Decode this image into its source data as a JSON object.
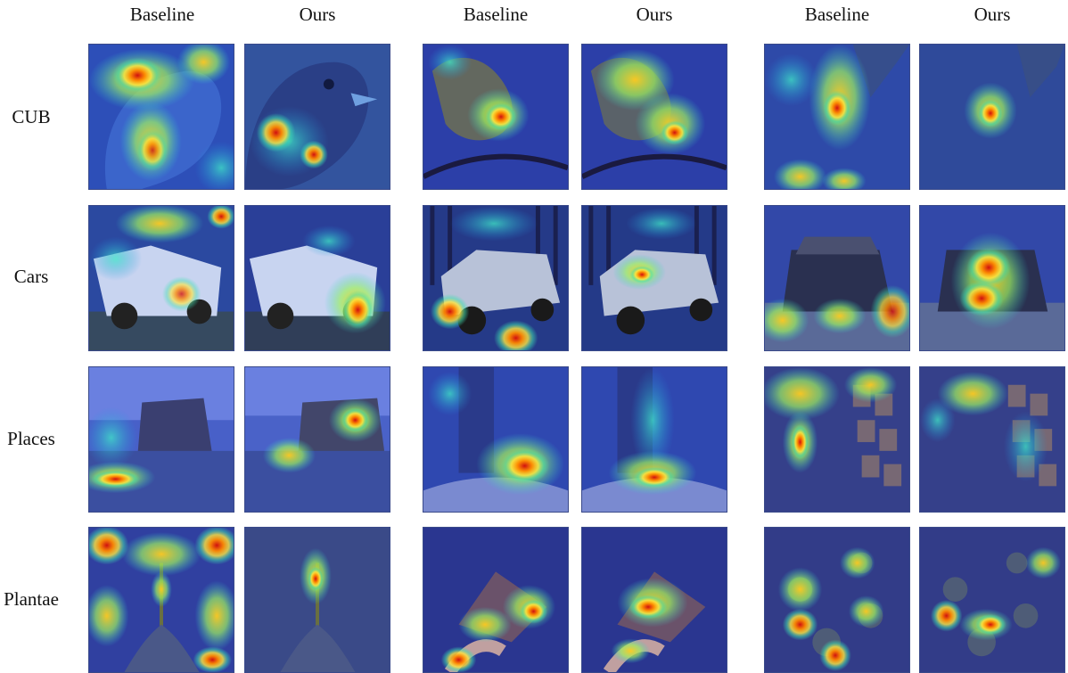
{
  "column_headers": [
    "Baseline",
    "Ours",
    "Baseline",
    "Ours",
    "Baseline",
    "Ours"
  ],
  "row_labels": [
    "CUB",
    "Cars",
    "Places",
    "Plantae"
  ]
}
